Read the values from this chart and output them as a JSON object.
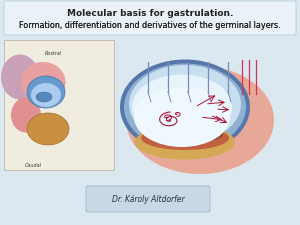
{
  "bg_color": "#dce8f0",
  "title_line1": "Molecular basis for gastrulation.",
  "title_line2_normal": "Formation, differentiation and derivatives of the ",
  "title_line2_bold": "germinal layers.",
  "author_text": "Dr. Károly Altdorfer",
  "author_box_color": "#c8d8e4",
  "title_fontsize": 6.5,
  "subtitle_fontsize": 5.8,
  "author_fontsize": 5.5,
  "arrow_color": "#aa1133",
  "line_color": "#8899cc",
  "fig_w": 3.0,
  "fig_h": 2.25,
  "dpi": 100
}
